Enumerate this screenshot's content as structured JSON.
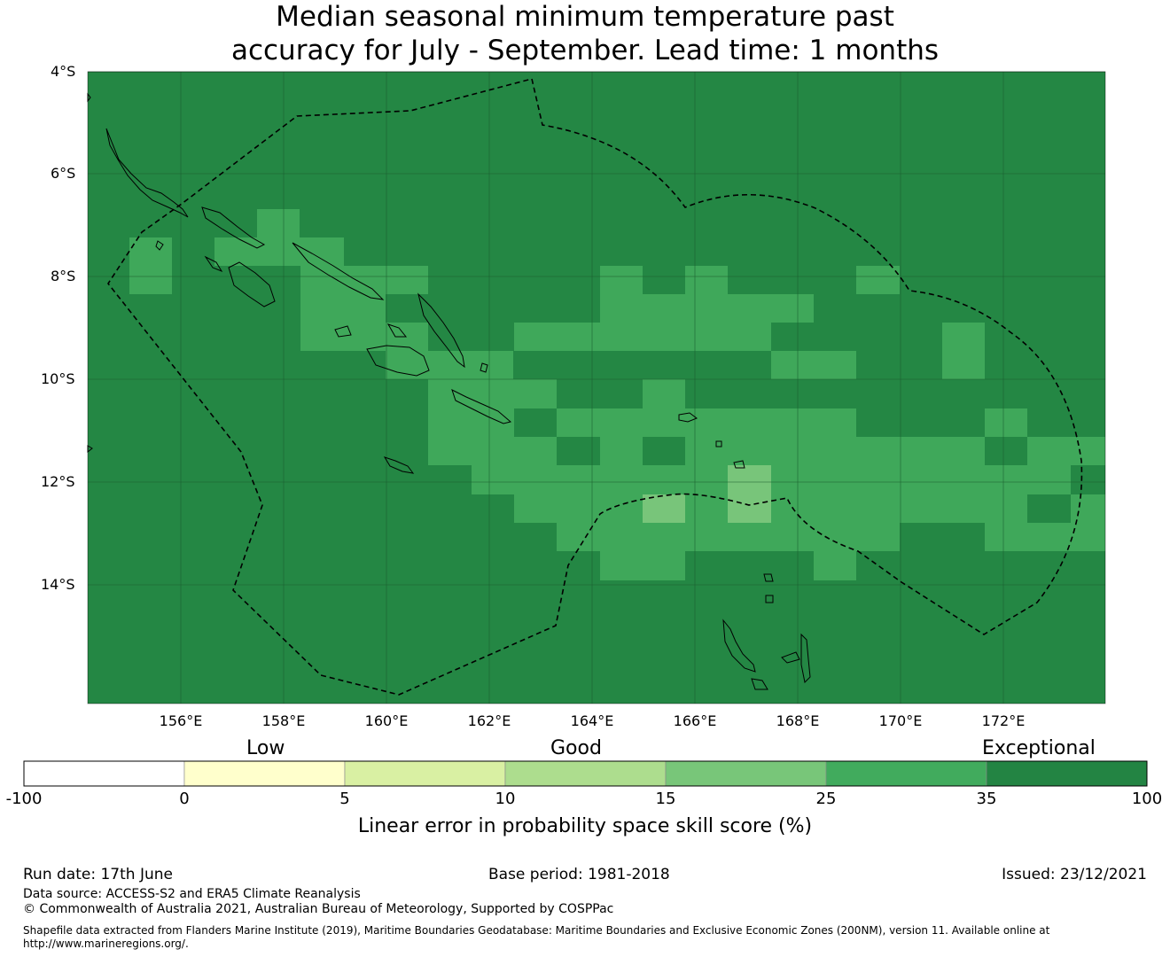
{
  "title": {
    "line1": "Median seasonal minimum temperature past",
    "line2": "accuracy for July - September. Lead time: 1 months"
  },
  "map": {
    "lat_labels": [
      "4°S",
      "6°S",
      "8°S",
      "10°S",
      "12°S",
      "14°S"
    ],
    "lon_labels": [
      "156°E",
      "158°E",
      "160°E",
      "162°E",
      "164°E",
      "166°E",
      "168°E",
      "170°E",
      "172°E"
    ],
    "colors": {
      "exceptional": "#248744",
      "good_high": "#3fa85a",
      "good_mid": "#78c57a",
      "boundary": "#000000"
    }
  },
  "colorbar": {
    "categories": {
      "low": "Low",
      "good": "Good",
      "exceptional": "Exceptional"
    },
    "ticks": [
      "-100",
      "0",
      "5",
      "10",
      "15",
      "25",
      "35",
      "100"
    ],
    "colors": [
      "#ffffff",
      "#ffffcc",
      "#d9f0a3",
      "#addd8e",
      "#78c679",
      "#41ab5d",
      "#238443"
    ],
    "caption": "Linear error in probability space skill score (%)"
  },
  "footer": {
    "run_date": "Run date: 17th June",
    "base_period": "Base period: 1981-2018",
    "issued": "Issued: 23/12/2021",
    "data_source": "Data source: ACCESS-S2 and ERA5 Climate Reanalysis",
    "copyright": "© Commonwealth of Australia 2021, Australian Bureau of Meteorology, Supported by COSPPac",
    "shapefile_line1": "Shapefile data extracted from Flanders Marine Institute (2019), Maritime Boundaries Geodatabase: Maritime Boundaries and Exclusive Economic Zones (200NM), version 11. Available online at",
    "shapefile_line2": "http://www.marineregions.org/."
  }
}
